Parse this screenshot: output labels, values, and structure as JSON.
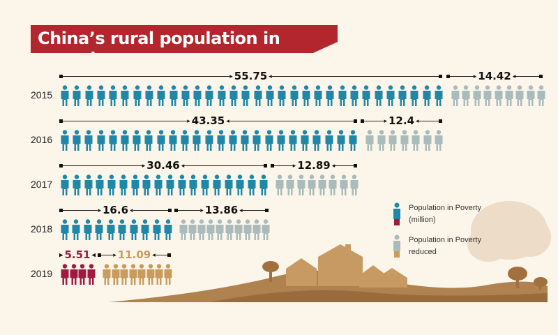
{
  "title": "China’s rural population in poverty",
  "chart_data": {
    "type": "pictogram-bar",
    "title": "China’s rural population in poverty",
    "unit": "million",
    "categories": [
      "2015",
      "2016",
      "2017",
      "2018",
      "2019"
    ],
    "series": [
      {
        "name": "Population in Poverty (million)",
        "values": [
          55.75,
          43.35,
          30.46,
          16.6,
          5.51
        ],
        "icons": [
          32,
          25,
          18,
          10,
          4
        ]
      },
      {
        "name": "Population in Poverty reduced",
        "values": [
          14.42,
          12.4,
          12.89,
          13.86,
          11.09
        ],
        "icons": [
          9,
          7,
          8,
          10,
          8
        ]
      }
    ]
  },
  "labels": {
    "poverty": [
      "55.75",
      "43.35",
      "30.46",
      "16.6",
      "5.51"
    ],
    "reduced": [
      "14.42",
      "12.4",
      "12.89",
      "13.86",
      "11.09"
    ]
  },
  "legend": {
    "poverty": "Population in Poverty (million)",
    "reduced": "Population in Poverty reduced"
  },
  "colors": {
    "poverty": "#1f87a8",
    "reduced": "#a9bbbb",
    "poverty_2019": "#9e1a40",
    "reduced_2019": "#c99b5f",
    "title_bg": "#b3262d"
  }
}
